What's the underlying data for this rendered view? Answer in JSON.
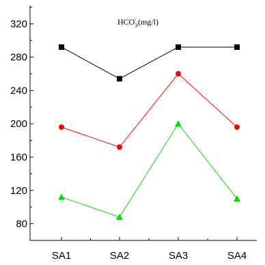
{
  "chart_data": {
    "type": "line",
    "title": "HCO3- (mg/l)",
    "title_parts": {
      "base": "HCO",
      "sub": "3",
      "sup": "-",
      "unit": " (mg/l)"
    },
    "xlabel": "",
    "ylabel": "",
    "categories": [
      "SA1",
      "SA2",
      "SA3",
      "SA4"
    ],
    "y_ticks": [
      80,
      120,
      160,
      200,
      240,
      280,
      320
    ],
    "ylim": [
      60,
      342
    ],
    "grid": false,
    "legend": "none",
    "series": [
      {
        "values": [
          292,
          254,
          292,
          292
        ],
        "color": "#000000",
        "marker": "square"
      },
      {
        "values": [
          196,
          172,
          260,
          196
        ],
        "color": "#ff0000",
        "marker": "circle"
      },
      {
        "values": [
          112,
          88,
          200,
          110
        ],
        "color": "#00dd00",
        "marker": "triangle"
      }
    ]
  }
}
